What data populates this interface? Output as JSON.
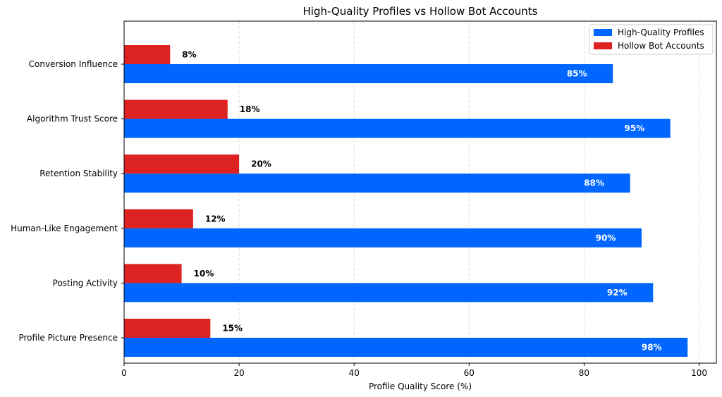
{
  "chart_data": {
    "type": "bar",
    "orientation": "horizontal",
    "title": "High-Quality Profiles vs Hollow Bot Accounts",
    "xlabel": "Profile Quality Score (%)",
    "ylabel": "",
    "xlim": [
      0,
      103
    ],
    "xticks": [
      0,
      20,
      40,
      60,
      80,
      100
    ],
    "grid": "x-dashed",
    "legend_position": "top-right",
    "categories": [
      "Profile Picture Presence",
      "Posting Activity",
      "Human-Like Engagement",
      "Retention Stability",
      "Algorithm Trust Score",
      "Conversion Influence"
    ],
    "series": [
      {
        "name": "High-Quality Profiles",
        "color": "#0066ff",
        "values": [
          98,
          92,
          90,
          88,
          95,
          85
        ],
        "labels": [
          "98%",
          "92%",
          "90%",
          "88%",
          "95%",
          "85%"
        ]
      },
      {
        "name": "Hollow Bot Accounts",
        "color": "#dd2222",
        "values": [
          15,
          10,
          12,
          20,
          18,
          8
        ],
        "labels": [
          "15%",
          "10%",
          "12%",
          "20%",
          "18%",
          "8%"
        ]
      }
    ]
  }
}
